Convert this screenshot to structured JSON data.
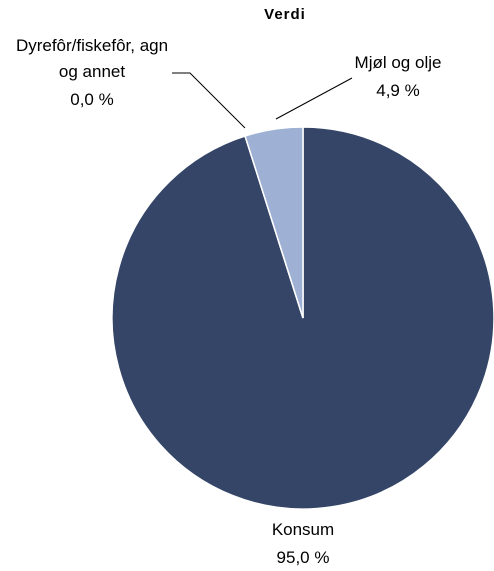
{
  "chart_data": {
    "type": "pie",
    "title": "Verdi",
    "categories": [
      "Konsum",
      "Dyrefôr/fiskefôr, agn og annet",
      "Mjøl og olje"
    ],
    "values": [
      95.0,
      0.0,
      4.9
    ],
    "value_labels": [
      "95,0 %",
      "0,0 %",
      "4,9 %"
    ],
    "colors": [
      "#344567",
      "#c8c8c8",
      "#9eb0d4"
    ]
  }
}
